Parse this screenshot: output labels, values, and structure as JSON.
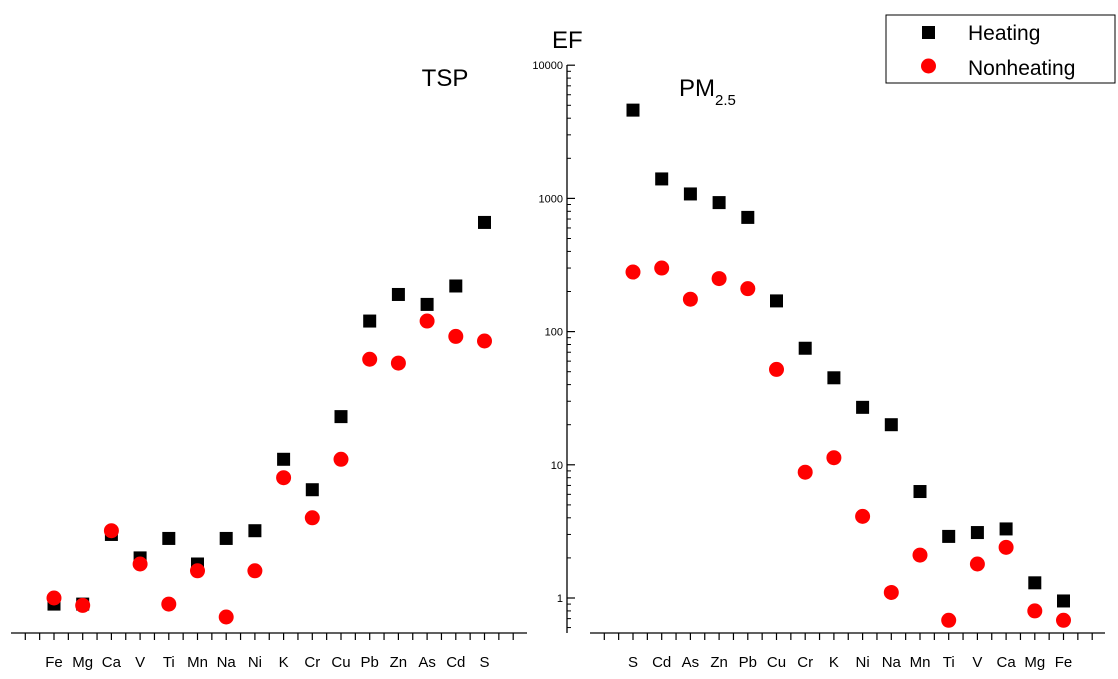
{
  "chart_data": [
    {
      "type": "scatter",
      "title": "TSP",
      "yscale": "log",
      "categories": [
        "Fe",
        "Mg",
        "Ca",
        "V",
        "Ti",
        "Mn",
        "Na",
        "Ni",
        "K",
        "Cr",
        "Cu",
        "Pb",
        "Zn",
        "As",
        "Cd",
        "S"
      ],
      "series": [
        {
          "name": "Heating",
          "marker": "square",
          "color": "#000000",
          "values": [
            0.9,
            0.9,
            3.0,
            2.0,
            2.8,
            1.8,
            2.8,
            3.2,
            11,
            6.5,
            23,
            120,
            190,
            160,
            220,
            660
          ]
        },
        {
          "name": "Nonheating",
          "marker": "circle",
          "color": "#ff0000",
          "values": [
            1.0,
            0.88,
            3.2,
            1.8,
            0.9,
            1.6,
            0.72,
            1.6,
            8.0,
            4.0,
            11,
            62,
            58,
            120,
            92,
            85
          ]
        }
      ]
    },
    {
      "type": "scatter",
      "title": "PM",
      "title_sub": "2.5",
      "ylabel": "EF",
      "yscale": "log",
      "ylim": [
        0.6,
        10000
      ],
      "yticks": [
        "1",
        "10",
        "100",
        "1000",
        "10000"
      ],
      "categories": [
        "S",
        "Cd",
        "As",
        "Zn",
        "Pb",
        "Cu",
        "Cr",
        "K",
        "Ni",
        "Na",
        "Mn",
        "Ti",
        "V",
        "Ca",
        "Mg",
        "Fe"
      ],
      "series": [
        {
          "name": "Heating",
          "marker": "square",
          "color": "#000000",
          "values": [
            4600,
            1400,
            1080,
            930,
            720,
            170,
            75,
            45,
            27,
            20,
            6.3,
            2.9,
            3.1,
            3.3,
            1.3,
            0.95
          ]
        },
        {
          "name": "Nonheating",
          "marker": "circle",
          "color": "#ff0000",
          "values": [
            280,
            300,
            175,
            250,
            210,
            52,
            8.8,
            11.3,
            4.1,
            1.1,
            2.1,
            0.68,
            1.8,
            2.4,
            0.8,
            0.68
          ]
        }
      ]
    }
  ],
  "legend": {
    "placement": "top-right",
    "entries": [
      {
        "label": "Heating",
        "marker": "square",
        "color": "#000000"
      },
      {
        "label": "Nonheating",
        "marker": "circle",
        "color": "#ff0000"
      }
    ]
  }
}
